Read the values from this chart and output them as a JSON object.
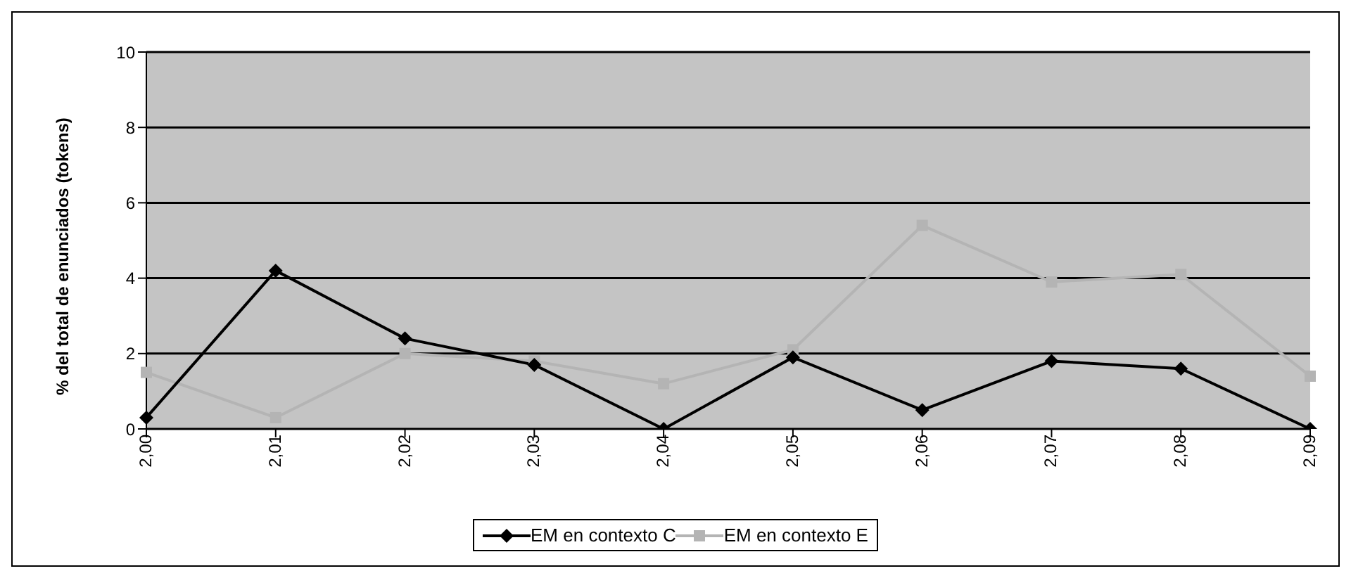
{
  "chart_data": {
    "type": "line",
    "ylabel": "% del total de enunciados (tokens)",
    "categories": [
      "2,00",
      "2,01",
      "2,02",
      "2,03",
      "2,04",
      "2,05",
      "2,06",
      "2,07",
      "2,08",
      "2,09"
    ],
    "series": [
      {
        "name": "EM en contexto C",
        "color": "#000000",
        "marker": "diamond",
        "values": [
          0.3,
          4.2,
          2.4,
          1.7,
          0,
          1.9,
          0.5,
          1.8,
          1.6,
          0
        ]
      },
      {
        "name": "EM en contexto E",
        "color": "#b4b4b4",
        "marker": "square",
        "values": [
          1.5,
          0.3,
          2.0,
          1.8,
          1.2,
          2.1,
          5.4,
          3.9,
          4.1,
          1.4
        ]
      }
    ],
    "ylim": [
      0,
      10
    ],
    "yticks": [
      0,
      2,
      4,
      6,
      8,
      10
    ],
    "grid": "y",
    "legend": "bottom",
    "line_style": "solid"
  }
}
